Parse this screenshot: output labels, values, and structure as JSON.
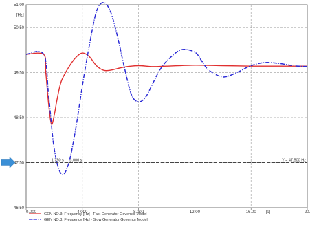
{
  "chart_data": {
    "type": "line",
    "xlim": [
      0,
      20
    ],
    "ylim": [
      46.5,
      51
    ],
    "y_unit": "[Hz]",
    "x_unit": "[s]",
    "grid": true,
    "legend_position": "bottom",
    "xticks": [
      {
        "value": 0,
        "label": "0.000"
      },
      {
        "value": 4,
        "label": "4.000"
      },
      {
        "value": 8,
        "label": "8.000"
      },
      {
        "value": 12,
        "label": "12.00"
      },
      {
        "value": 16,
        "label": "16.00"
      },
      {
        "value": 20,
        "label": "20."
      }
    ],
    "yticks": [
      {
        "value": 51.0,
        "label": "51.00"
      },
      {
        "value": 50.5,
        "label": "50.50"
      },
      {
        "value": 49.5,
        "label": "49.50"
      },
      {
        "value": 48.5,
        "label": "48.50"
      },
      {
        "value": 47.5,
        "label": "47.50"
      },
      {
        "value": 46.5,
        "label": "46.50"
      }
    ],
    "series": [
      {
        "name": "GEN NO.3: Frequency [Hz] - Fast Generator Governor Model",
        "color": "#e03030",
        "style": "solid",
        "x": [
          0,
          1.25,
          1.4,
          1.6,
          1.8,
          2.0,
          2.2,
          2.5,
          3.0,
          3.5,
          4.0,
          4.5,
          5.0,
          5.5,
          6.0,
          7.0,
          8.0,
          9.0,
          10.0,
          12.0,
          14.0,
          16.0,
          18.0,
          20.0
        ],
        "y": [
          49.9,
          49.9,
          49.5,
          48.8,
          48.35,
          48.55,
          48.9,
          49.3,
          49.6,
          49.82,
          49.93,
          49.85,
          49.65,
          49.55,
          49.55,
          49.62,
          49.65,
          49.63,
          49.64,
          49.66,
          49.65,
          49.64,
          49.64,
          49.64
        ]
      },
      {
        "name": "GEN NO.3: Frequency [Hz] - Slow Generator Governor Model",
        "color": "#2b2bd6",
        "style": "dash-dot",
        "x": [
          0,
          1.25,
          1.6,
          2.0,
          2.5,
          3.0,
          3.5,
          4.0,
          4.5,
          5.0,
          5.5,
          6.0,
          6.5,
          7.0,
          7.5,
          8.0,
          8.5,
          9.0,
          9.5,
          10.0,
          11.0,
          12.0,
          12.5,
          13.0,
          14.0,
          15.0,
          16.0,
          17.0,
          18.0,
          19.0,
          20.0
        ],
        "y": [
          49.9,
          49.9,
          49.0,
          47.8,
          47.25,
          47.45,
          48.2,
          49.2,
          50.1,
          50.85,
          51.05,
          50.85,
          50.3,
          49.6,
          49.0,
          48.85,
          48.95,
          49.25,
          49.55,
          49.75,
          50.0,
          49.95,
          49.75,
          49.55,
          49.4,
          49.5,
          49.65,
          49.72,
          49.7,
          49.65,
          49.63
        ]
      }
    ],
    "annotations": {
      "marker_x": "1.750 s",
      "marker_x2": "3.000 s",
      "hline_label": "Y = 47.500 Hz",
      "hline_value": 47.5
    }
  }
}
